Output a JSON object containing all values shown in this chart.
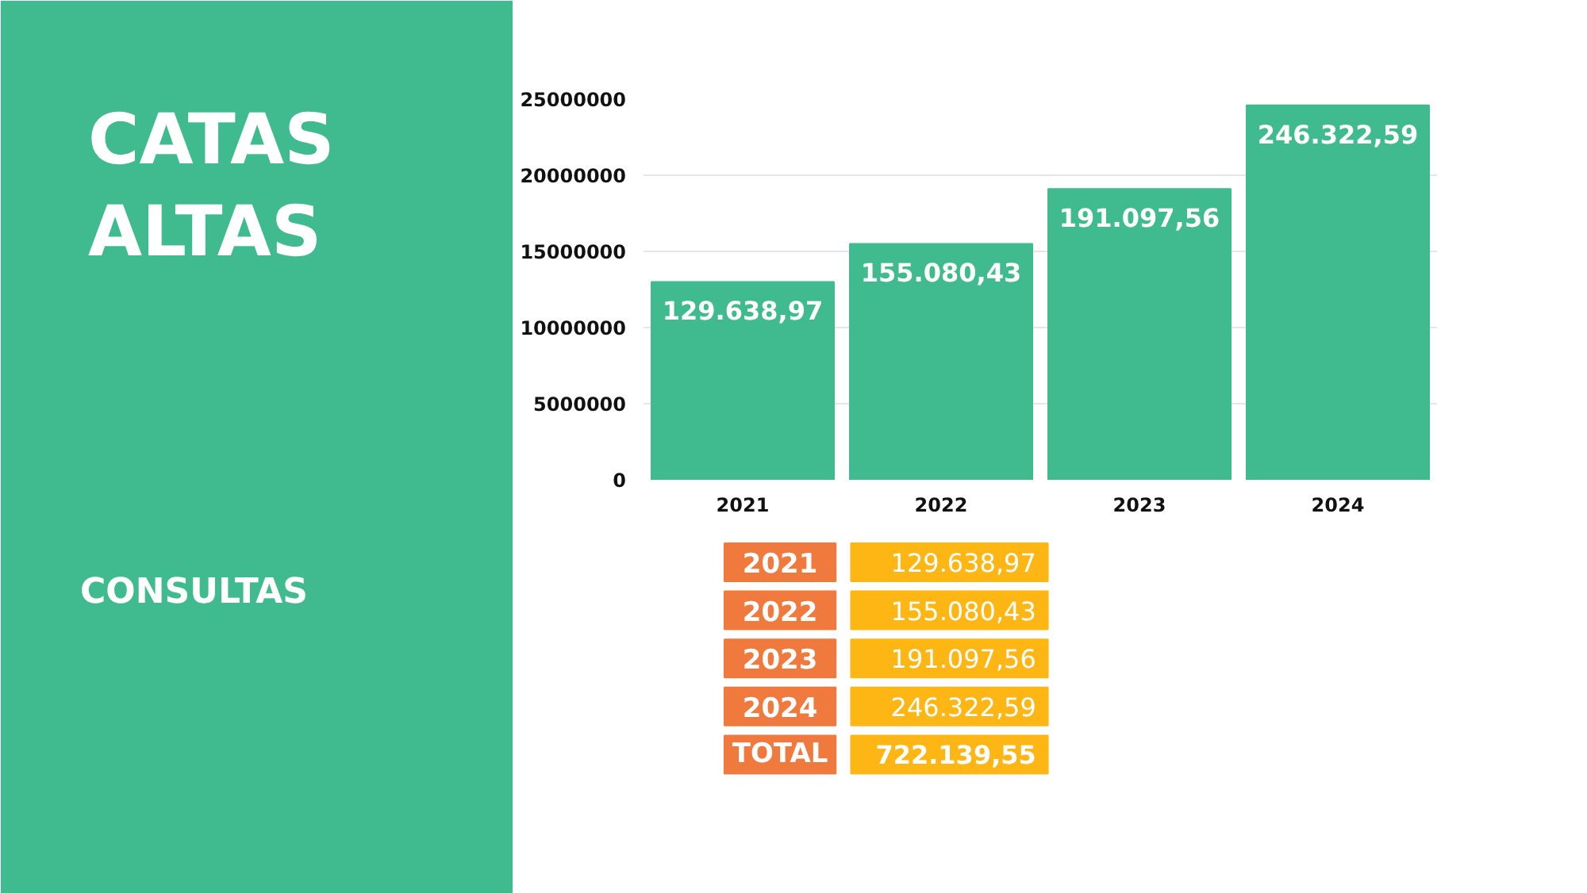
{
  "chart_data": {
    "type": "bar",
    "title": "CATAS ALTAS",
    "categories": [
      "2021",
      "2022",
      "2023",
      "2024"
    ],
    "values": [
      13000000,
      15500000,
      19100000,
      24600000
    ],
    "color": "#3fbb8f",
    "ylim": [
      0,
      25000000
    ],
    "yticks": [
      0,
      5000000,
      10000000,
      15000000,
      20000000,
      25000000
    ],
    "grid": "y",
    "annotations": [
      "CONSULTAS",
      {
        "text": "129.638,97",
        "x": "2021",
        "y": 13000000
      },
      {
        "text": "155.080,43",
        "x": "2022",
        "y": 15500000
      },
      {
        "text": "191.097,56",
        "x": "2023",
        "y": 19100000
      },
      {
        "text": "246.322,59",
        "x": "2024",
        "y": 24600000
      },
      "TOTAL",
      "722.139,55"
    ]
  }
}
